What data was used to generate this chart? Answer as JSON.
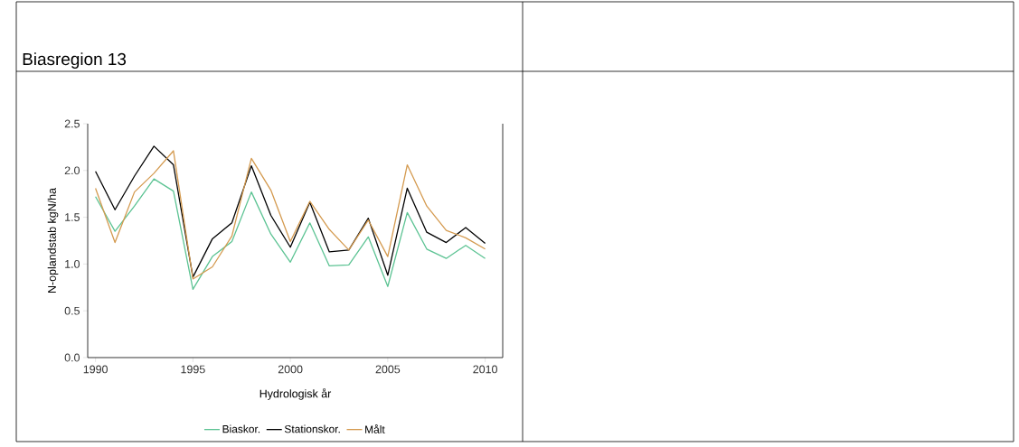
{
  "chart_data": {
    "type": "line",
    "title": "Biasregion 13",
    "xlabel": "Hydrologisk år",
    "ylabel": "N-oplandstab kgN/ha",
    "x": [
      1990,
      1991,
      1992,
      1993,
      1994,
      1995,
      1996,
      1997,
      1998,
      1999,
      2000,
      2001,
      2002,
      2003,
      2004,
      2005,
      2006,
      2007,
      2008,
      2009,
      2010
    ],
    "series": [
      {
        "name": "Biaskor.",
        "color": "#5cc393",
        "values": [
          1.72,
          1.35,
          1.62,
          1.91,
          1.78,
          0.73,
          1.08,
          1.24,
          1.77,
          1.32,
          1.02,
          1.44,
          0.98,
          0.99,
          1.29,
          0.76,
          1.55,
          1.16,
          1.06,
          1.2,
          1.06
        ]
      },
      {
        "name": "Stationskor.",
        "color": "#000000",
        "values": [
          1.99,
          1.58,
          1.94,
          2.26,
          2.06,
          0.86,
          1.27,
          1.44,
          2.05,
          1.52,
          1.18,
          1.66,
          1.13,
          1.15,
          1.49,
          0.88,
          1.81,
          1.34,
          1.23,
          1.39,
          1.22
        ]
      },
      {
        "name": "Målt",
        "color": "#d49a4f",
        "values": [
          1.81,
          1.23,
          1.77,
          1.97,
          2.21,
          0.84,
          0.97,
          1.3,
          2.13,
          1.79,
          1.24,
          1.67,
          1.37,
          1.15,
          1.47,
          1.08,
          2.06,
          1.62,
          1.36,
          1.28,
          1.16
        ]
      }
    ],
    "xlim": [
      1989.6,
      2010.9
    ],
    "ylim": [
      0,
      2.5
    ],
    "xticks": [
      1990,
      1995,
      2000,
      2005,
      2010
    ],
    "yticks": [
      {
        "value": 0,
        "label": "0.0"
      },
      {
        "value": 0.5,
        "label": "0.5"
      },
      {
        "value": 1,
        "label": "1.0"
      },
      {
        "value": 1.5,
        "label": "1.5"
      },
      {
        "value": 2,
        "label": "2.0"
      },
      {
        "value": 2.5,
        "label": "2.5"
      }
    ],
    "grid": false,
    "legend": "bottom",
    "marker": "none",
    "line_style": "solid"
  }
}
